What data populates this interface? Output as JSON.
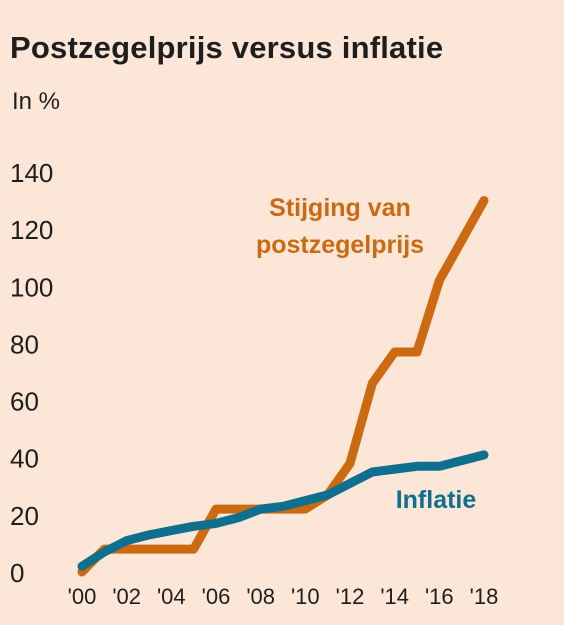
{
  "title": "Postzegelprijs versus inflatie",
  "unit_label": "In %",
  "chart_data": {
    "type": "line",
    "title": "Postzegelprijs versus inflatie",
    "ylabel": "In %",
    "xlabel": "",
    "ylim": [
      0,
      140
    ],
    "y_ticks": [
      "0",
      "20",
      "40",
      "60",
      "80",
      "100",
      "120",
      "140"
    ],
    "x_ticks": [
      "'00",
      "'02",
      "'04",
      "'06",
      "'08",
      "'10",
      "'12",
      "'14",
      "'16",
      "'18"
    ],
    "grid": false,
    "series": [
      {
        "name": "Stijging van postzegelprijs",
        "label_lines": [
          "Stijging van",
          "postzegelprijs"
        ],
        "color": "#cc6a12",
        "points": [
          [
            2000,
            0
          ],
          [
            2001,
            8
          ],
          [
            2002,
            8
          ],
          [
            2003,
            8
          ],
          [
            2004,
            8
          ],
          [
            2005,
            8
          ],
          [
            2006,
            22
          ],
          [
            2007,
            22
          ],
          [
            2008,
            22
          ],
          [
            2009,
            22
          ],
          [
            2010,
            22
          ],
          [
            2011,
            27
          ],
          [
            2012,
            38
          ],
          [
            2013,
            66
          ],
          [
            2014,
            77
          ],
          [
            2015,
            77
          ],
          [
            2016,
            102
          ],
          [
            2017,
            116
          ],
          [
            2018,
            130
          ]
        ]
      },
      {
        "name": "Inflatie",
        "label_lines": [
          "Inflatie"
        ],
        "color": "#0e6f8f",
        "points": [
          [
            2000,
            2
          ],
          [
            2001,
            7
          ],
          [
            2002,
            11
          ],
          [
            2003,
            13
          ],
          [
            2004,
            14.5
          ],
          [
            2005,
            16
          ],
          [
            2006,
            17
          ],
          [
            2007,
            19
          ],
          [
            2008,
            22
          ],
          [
            2009,
            23
          ],
          [
            2010,
            25
          ],
          [
            2011,
            27
          ],
          [
            2012,
            31
          ],
          [
            2013,
            35
          ],
          [
            2014,
            36
          ],
          [
            2015,
            37
          ],
          [
            2016,
            37
          ],
          [
            2017,
            39
          ],
          [
            2018,
            41
          ]
        ]
      }
    ]
  }
}
